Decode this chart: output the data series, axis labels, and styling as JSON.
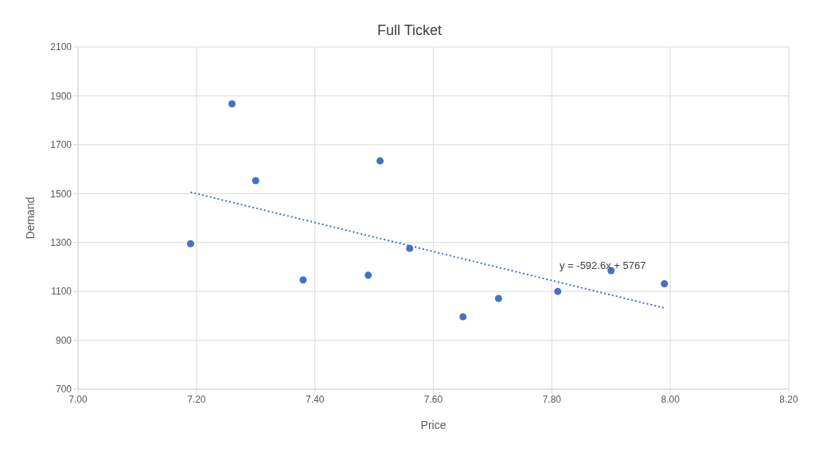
{
  "chart_data": {
    "type": "scatter",
    "title": "Full Ticket",
    "xlabel": "Price",
    "ylabel": "Demand",
    "xlim": [
      7,
      8.2
    ],
    "xticks": [
      {
        "value": 7,
        "label": "7.00"
      },
      {
        "value": 7.2,
        "label": "7.20"
      },
      {
        "value": 7.4,
        "label": "7.40"
      },
      {
        "value": 7.6,
        "label": "7.60"
      },
      {
        "value": 7.8,
        "label": "7.80"
      },
      {
        "value": 8,
        "label": "8.00"
      },
      {
        "value": 8.2,
        "label": "8.20"
      }
    ],
    "ylim": [
      700,
      2100
    ],
    "yticks": [
      700,
      900,
      1100,
      1300,
      1500,
      1700,
      1900,
      2100
    ],
    "grid": true,
    "marker": "circle",
    "series": [
      {
        "color": "#4472c4",
        "x": [
          7.19,
          7.26,
          7.3,
          7.38,
          7.49,
          7.51,
          7.56,
          7.65,
          7.71,
          7.81,
          7.9,
          7.99
        ],
        "values": [
          1295,
          1867,
          1553,
          1147,
          1166,
          1634,
          1276,
          996,
          1071,
          1100,
          1185,
          1131
        ]
      },
      {
        "type": "line",
        "color": "#4472c4",
        "line_style": "dotted",
        "marker": "none",
        "x": [
          7.19,
          7.99
        ],
        "values": [
          1506,
          1032
        ]
      }
    ],
    "annotations": [
      "y = -592.6x + 5767"
    ]
  }
}
